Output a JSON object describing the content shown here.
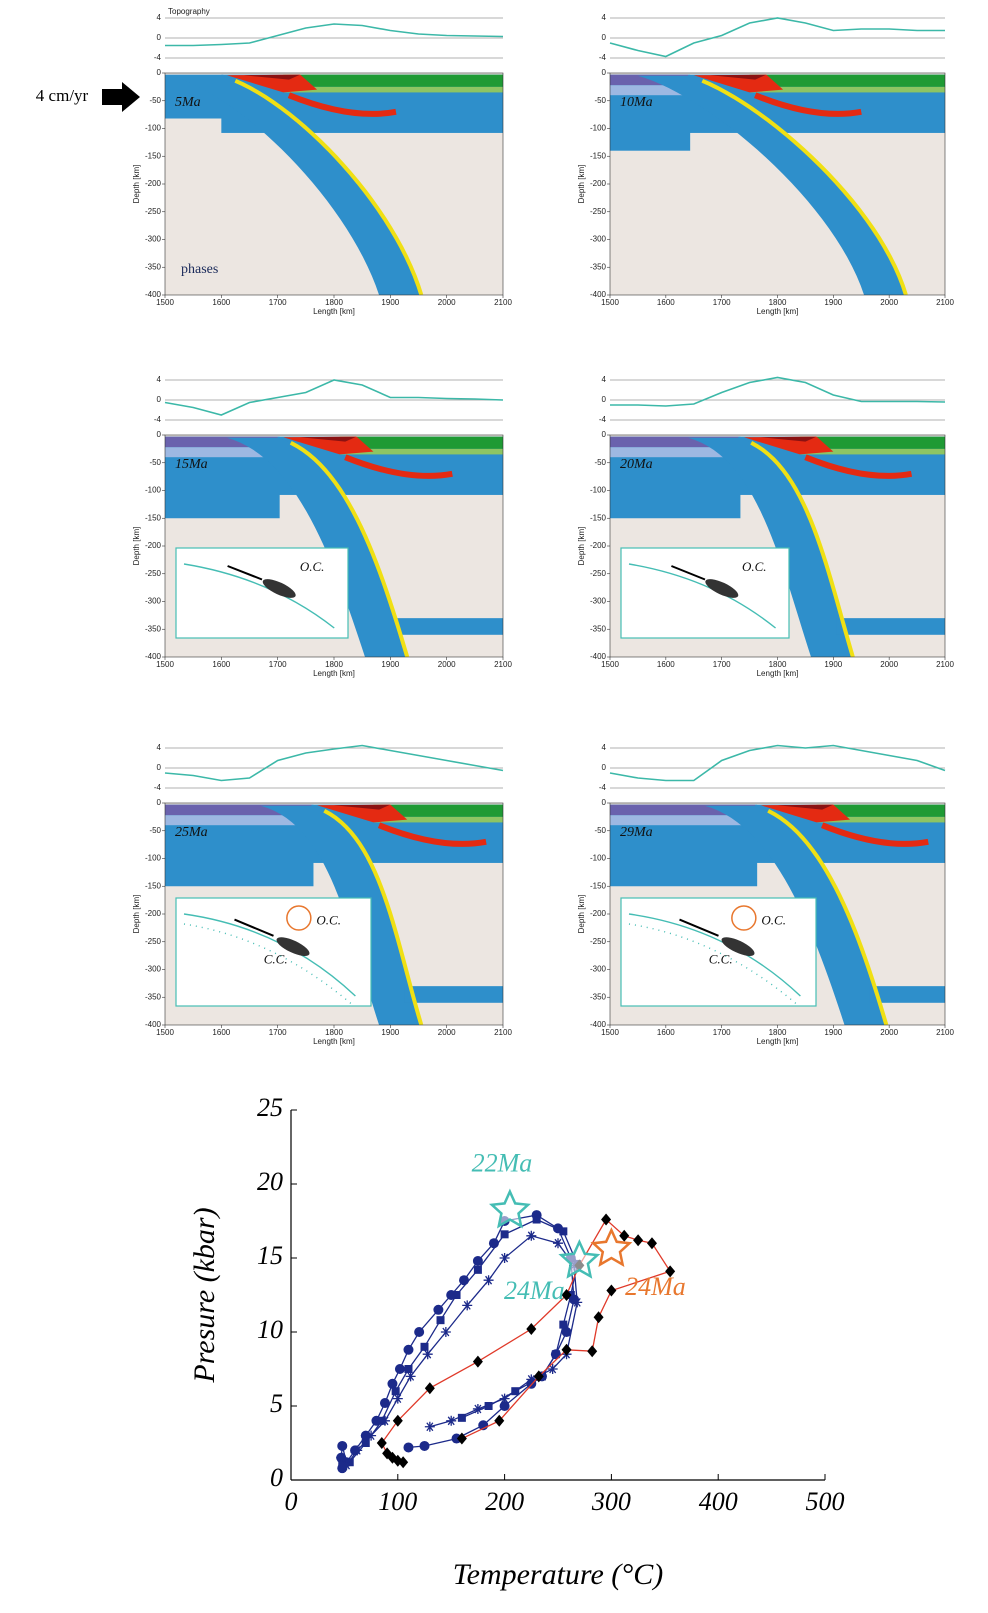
{
  "figure": {
    "arrow_label": "4 cm/yr",
    "topography_title": "Topography",
    "phases_label": "phases",
    "xlabel": "Length [km]",
    "ylabel": "Depth [km]",
    "topo_ticks": [
      4,
      0,
      -4
    ],
    "depth_ticks": [
      0,
      -50,
      -100,
      -150,
      -200,
      -250,
      -300,
      -350,
      -400
    ],
    "length_ticks": [
      1500,
      1600,
      1700,
      1800,
      1900,
      2000,
      2100
    ],
    "topography_x": [
      1500,
      1550,
      1600,
      1650,
      1700,
      1750,
      1800,
      1850,
      1900,
      1950,
      2000,
      2050,
      2100
    ],
    "panels": [
      {
        "time": "5Ma",
        "topography": [
          -1.5,
          -1.5,
          -1.3,
          -1.0,
          0.5,
          2.0,
          2.8,
          2.5,
          1.5,
          0.8,
          0.5,
          0.4,
          0.3
        ]
      },
      {
        "time": "10Ma",
        "topography": [
          -1.0,
          -2.5,
          -3.7,
          -1.0,
          0.5,
          3.0,
          4.0,
          3.0,
          1.5,
          1.8,
          1.8,
          1.5,
          1.5
        ]
      },
      {
        "time": "15Ma",
        "topography": [
          -0.5,
          -1.5,
          -3.0,
          -0.5,
          0.5,
          1.5,
          4.0,
          3.0,
          0.5,
          0.5,
          0.3,
          0.2,
          0.0
        ],
        "inset_labels": [
          "O.C."
        ]
      },
      {
        "time": "20Ma",
        "topography": [
          -1.0,
          -1.0,
          -1.2,
          -0.8,
          1.5,
          3.5,
          4.5,
          3.5,
          1.0,
          -0.3,
          -0.3,
          -0.3,
          -0.4
        ],
        "inset_labels": [
          "O.C."
        ]
      },
      {
        "time": "25Ma",
        "topography": [
          -1.0,
          -1.5,
          -2.5,
          -2.0,
          1.5,
          3.0,
          3.8,
          4.5,
          3.5,
          2.5,
          1.5,
          0.5,
          -0.5
        ],
        "inset_labels": [
          "O.C.",
          "C.C."
        ]
      },
      {
        "time": "29Ma",
        "topography": [
          -1.0,
          -2.0,
          -2.5,
          -2.5,
          1.5,
          3.5,
          4.5,
          4.0,
          4.5,
          3.5,
          2.5,
          1.5,
          -0.5
        ],
        "inset_labels": [
          "O.C.",
          "C.C."
        ]
      }
    ]
  },
  "chart_data": {
    "type": "line",
    "xlabel": "Temperature (°C)",
    "ylabel": "Presure (kbar)",
    "xlim": [
      0,
      500
    ],
    "ylim": [
      0,
      25
    ],
    "xticks": [
      0,
      100,
      200,
      300,
      400,
      500
    ],
    "yticks": [
      0,
      5,
      10,
      15,
      20,
      25
    ],
    "series": [
      {
        "color": "#1c2a8a",
        "marker": "circle",
        "x": [
          48,
          47,
          48,
          52,
          60,
          70,
          80,
          88,
          95,
          102,
          110,
          120,
          138,
          150,
          162,
          175,
          190,
          200,
          230,
          250,
          262,
          265,
          258,
          248,
          235,
          225,
          200,
          180,
          155,
          125,
          110
        ],
        "values": [
          0.8,
          1.5,
          2.3,
          1.2,
          2.0,
          3.0,
          4.0,
          5.2,
          6.5,
          7.5,
          8.8,
          10,
          11.5,
          12.5,
          13.5,
          14.8,
          16,
          17.5,
          17.9,
          17,
          15,
          12.2,
          10,
          8.5,
          7,
          6.5,
          5.0,
          3.7,
          2.8,
          2.3,
          2.2
        ]
      },
      {
        "color": "#1c2a8a",
        "marker": "square",
        "x": [
          48,
          55,
          70,
          85,
          98,
          110,
          125,
          140,
          155,
          175,
          200,
          230,
          255,
          268,
          262,
          255,
          248,
          235,
          210,
          185,
          160
        ],
        "values": [
          1.0,
          1.2,
          2.5,
          4.0,
          6.0,
          7.5,
          9.0,
          10.8,
          12.5,
          14.2,
          16.6,
          17.6,
          16.8,
          14.6,
          12.5,
          10.5,
          8.5,
          7.0,
          6.0,
          5.0,
          4.2
        ]
      },
      {
        "color": "#1c2a8a",
        "marker": "asterisk",
        "x": [
          47,
          52,
          62,
          75,
          88,
          100,
          112,
          128,
          145,
          165,
          185,
          200,
          225,
          250,
          265,
          268,
          258,
          245,
          225,
          200,
          175,
          150,
          130
        ],
        "values": [
          1.5,
          1.0,
          2.0,
          3.0,
          4.0,
          5.5,
          7.0,
          8.5,
          10.0,
          11.8,
          13.5,
          15.0,
          16.5,
          16.0,
          14.5,
          12.0,
          8.5,
          7.5,
          6.8,
          5.5,
          4.8,
          4.0,
          3.6
        ]
      },
      {
        "color": "#e03a2a",
        "marker": "diamond",
        "marker_color": "#000000",
        "x": [
          105,
          100,
          95,
          90,
          85,
          100,
          130,
          175,
          225,
          258,
          270,
          295,
          312,
          325,
          338,
          355,
          300,
          288,
          282,
          258,
          232,
          195,
          160
        ],
        "values": [
          1.2,
          1.3,
          1.5,
          1.8,
          2.5,
          4.0,
          6.2,
          8.0,
          10.2,
          12.5,
          14.5,
          17.6,
          16.5,
          16.2,
          16.0,
          14.1,
          12.8,
          11.0,
          8.7,
          8.8,
          7.0,
          4.0,
          2.8
        ]
      }
    ],
    "annotations": [
      {
        "text": "22Ma",
        "x": 205,
        "y": 18.2,
        "color": "#45bdb4"
      },
      {
        "text": "24Ma",
        "x": 270,
        "y": 14.8,
        "color": "#45bdb4"
      },
      {
        "text": "24Ma",
        "x": 300,
        "y": 15.6,
        "color": "#e8772e"
      }
    ]
  }
}
